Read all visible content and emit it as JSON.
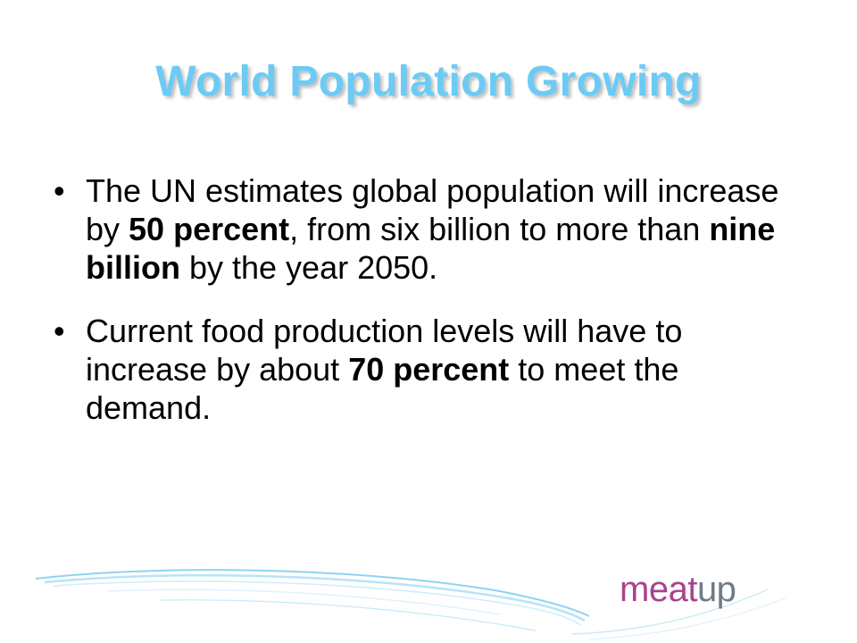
{
  "slide": {
    "title": "World Population Growing",
    "bullets": [
      {
        "parts": [
          {
            "text": "The UN estimates global population will increase by ",
            "bold": false
          },
          {
            "text": "50 percent",
            "bold": true
          },
          {
            "text": ", from six billion to more than ",
            "bold": false
          },
          {
            "text": "nine billion",
            "bold": true
          },
          {
            "text": " by the year 2050.",
            "bold": false
          }
        ]
      },
      {
        "parts": [
          {
            "text": "Current food production levels will have to increase by about ",
            "bold": false
          },
          {
            "text": "70 percent",
            "bold": true
          },
          {
            "text": " to meet the demand.",
            "bold": false
          }
        ]
      }
    ],
    "bullet_glyph": "•"
  },
  "logo": {
    "part1": "meat",
    "part2": "up"
  },
  "colors": {
    "title": "#6ccbf4",
    "text": "#000000",
    "logo_meat": "#a9438b",
    "logo_up": "#6e7c86",
    "swoosh": "#8fd3f0"
  }
}
